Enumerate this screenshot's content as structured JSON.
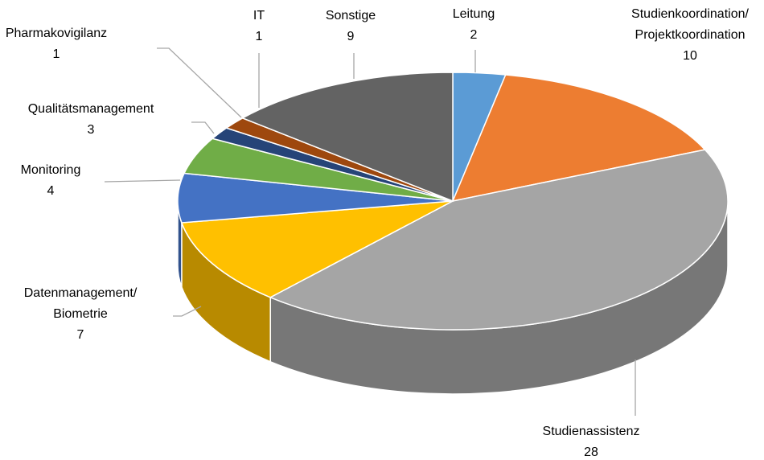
{
  "chart_data": {
    "type": "pie",
    "categories": [
      "Leitung",
      "Studienkoordination/ Projektkoordination",
      "Studienassistenz",
      "Datenmanagement/ Biometrie",
      "Monitoring",
      "Qualitätsmanagement",
      "Pharmakovigilanz",
      "IT",
      "Sonstige"
    ],
    "values": [
      2,
      10,
      28,
      7,
      4,
      3,
      1,
      1,
      9
    ],
    "colors": [
      "#5b9bd5",
      "#ed7d31",
      "#a5a5a5",
      "#ffc000",
      "#4472c4",
      "#70ad47",
      "#264478",
      "#9e480e",
      "#636363"
    ]
  }
}
